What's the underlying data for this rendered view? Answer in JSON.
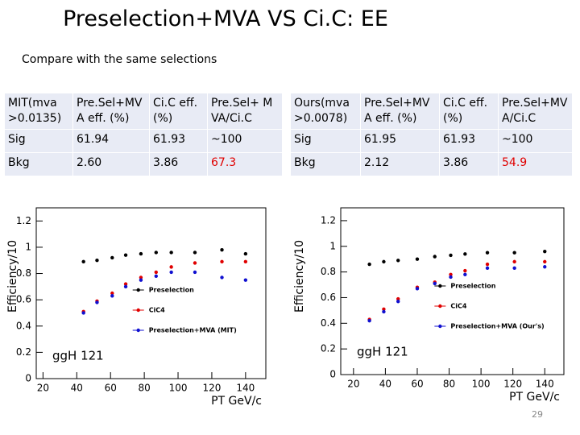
{
  "header": {
    "title": "Preselection+MVA VS Ci.C:  EE",
    "subtitle": "Compare with the same selections"
  },
  "tables": [
    {
      "rows": [
        [
          "MIT(mva >0.0135)",
          "Pre.Sel+MVA eff. (%)",
          "Ci.C eff. (%)",
          "Pre.Sel+ MVA/Ci.C"
        ],
        [
          "Sig",
          "61.94",
          "61.93",
          "~100"
        ],
        [
          "Bkg",
          "2.60",
          "3.86",
          "67.3"
        ]
      ]
    },
    {
      "rows": [
        [
          "Ours(mva >0.0078)",
          "Pre.Sel+MVA eff. (%)",
          "Ci.C eff. (%)",
          "Pre.Sel+MVA/Ci.C"
        ],
        [
          "Sig",
          "61.95",
          "61.93",
          "~100"
        ],
        [
          "Bkg",
          "2.12",
          "3.86",
          "54.9"
        ]
      ]
    }
  ],
  "chart_data": [
    {
      "type": "scatter",
      "y_label": "Efficiency/10",
      "x_label": "PT GeV/c",
      "annotation": "ggH 121",
      "legend": "lower right",
      "grid": false,
      "x": [
        44,
        52,
        61,
        69,
        78,
        87,
        96,
        110,
        126,
        140
      ],
      "series": [
        {
          "name": "Preselection",
          "color": "#000000",
          "values": [
            0.89,
            0.9,
            0.92,
            0.94,
            0.95,
            0.96,
            0.96,
            0.96,
            0.98,
            0.95
          ]
        },
        {
          "name": "CiC4",
          "color": "#e00000",
          "values": [
            0.51,
            0.59,
            0.65,
            0.72,
            0.77,
            0.81,
            0.85,
            0.88,
            0.89,
            0.89
          ]
        },
        {
          "name": "Preselection+MVA (MIT)",
          "color": "#1010d0",
          "values": [
            0.5,
            0.58,
            0.63,
            0.7,
            0.75,
            0.78,
            0.81,
            0.81,
            0.77,
            0.75
          ]
        }
      ],
      "xlim": [
        16,
        152
      ],
      "ylim": [
        0,
        1.3
      ],
      "xticks": [
        20,
        40,
        60,
        80,
        100,
        120,
        140
      ],
      "yticks": [
        0,
        0.2,
        0.4,
        0.6,
        0.8,
        1,
        1.2
      ]
    },
    {
      "type": "scatter",
      "y_label": "Efficiency/10",
      "x_label": "PT GeV/c",
      "annotation": "ggH 121",
      "legend": "lower right",
      "grid": false,
      "x": [
        30,
        39,
        48,
        60,
        71,
        81,
        90,
        104,
        121,
        140
      ],
      "series": [
        {
          "name": "Preselection",
          "color": "#000000",
          "values": [
            0.86,
            0.88,
            0.89,
            0.9,
            0.92,
            0.93,
            0.94,
            0.95,
            0.95,
            0.96
          ]
        },
        {
          "name": "CiC4",
          "color": "#e00000",
          "values": [
            0.43,
            0.51,
            0.59,
            0.68,
            0.72,
            0.78,
            0.81,
            0.86,
            0.88,
            0.88
          ]
        },
        {
          "name": "Preselection+MVA (Our's)",
          "color": "#1010d0",
          "values": [
            0.42,
            0.49,
            0.57,
            0.67,
            0.71,
            0.76,
            0.78,
            0.83,
            0.83,
            0.84
          ]
        }
      ],
      "xlim": [
        12,
        152
      ],
      "ylim": [
        0,
        1.3
      ],
      "xticks": [
        20,
        40,
        60,
        80,
        100,
        120,
        140
      ],
      "yticks": [
        0,
        0.2,
        0.4,
        0.6,
        0.8,
        1,
        1.2
      ]
    }
  ],
  "page_number": "29"
}
